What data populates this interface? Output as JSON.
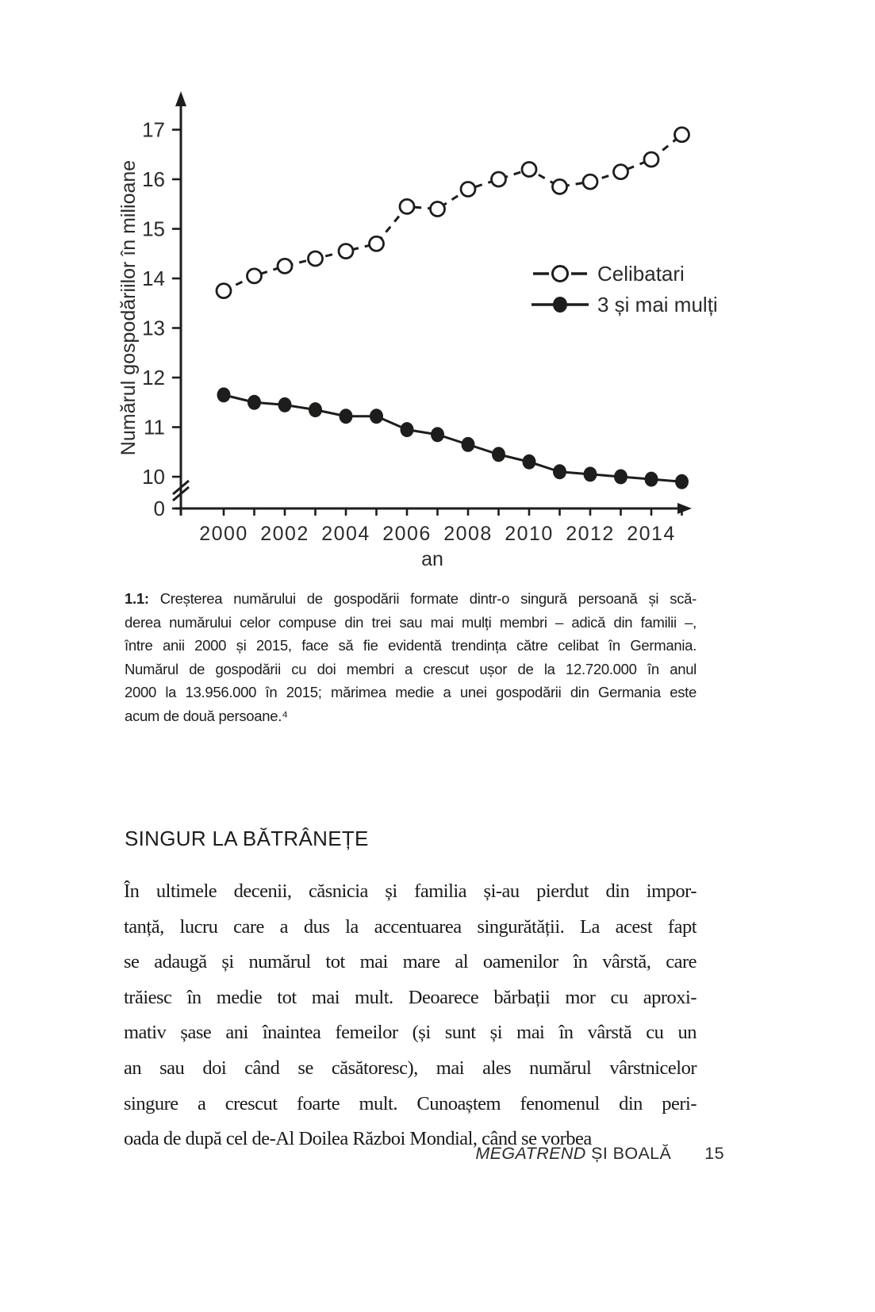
{
  "chart_data": {
    "type": "line",
    "x": [
      2000,
      2001,
      2002,
      2003,
      2004,
      2005,
      2006,
      2007,
      2008,
      2009,
      2010,
      2011,
      2012,
      2013,
      2014,
      2015
    ],
    "series": [
      {
        "name": "Celibatari",
        "marker": "open-circle",
        "line_style": "dashed",
        "values": [
          13.75,
          14.05,
          14.25,
          14.4,
          14.55,
          14.7,
          15.45,
          15.4,
          15.8,
          16.0,
          16.2,
          15.85,
          15.95,
          16.15,
          16.4,
          16.9
        ]
      },
      {
        "name": "3 și mai mulți",
        "marker": "filled-circle",
        "line_style": "solid",
        "values": [
          11.65,
          11.5,
          11.45,
          11.35,
          11.22,
          11.22,
          10.95,
          10.85,
          10.65,
          10.45,
          10.3,
          10.1,
          10.05,
          10.0,
          9.95,
          9.9
        ]
      }
    ],
    "xlabel": "an",
    "ylabel": "Numărul gospodăriilor în milioane",
    "y_ticks": [
      0,
      10,
      11,
      12,
      13,
      14,
      15,
      16,
      17
    ],
    "x_tick_labels": [
      "2000",
      "2002",
      "2004",
      "2006",
      "2008",
      "2010",
      "2012",
      "2014"
    ],
    "y_axis_break": true,
    "ylim": [
      0,
      17.5
    ],
    "grid": false,
    "legend_position": "middle-right",
    "line_color": "#1d1d1b"
  },
  "caption": {
    "label": "1.1:",
    "lines": [
      "Creșterea numărului de gospodării formate dintr-o singură persoană și scă-",
      "derea numărului celor compuse din trei sau mai mulți membri – adică din familii –,",
      "între anii 2000 și 2015, face să fie evidentă trendința către celibat în Germania.",
      "Numărul de gospodării cu doi membri a crescut ușor de la 12.720.000 în anul",
      "2000 la 13.956.000 în 2015; mărimea medie a unei gospodării din Germania este",
      "acum de două persoane.⁴"
    ]
  },
  "section": {
    "heading": "SINGUR LA BĂTRÂNEȚE",
    "paragraph_lines": [
      "În ultimele decenii, căsnicia și familia și-au pierdut din impor-",
      "tanță, lucru care a dus la accentuarea singurătății. La acest fapt",
      "se adaugă și numărul tot mai mare al oamenilor în vârstă, care",
      "trăiesc în medie tot mai mult. Deoarece bărbații mor cu aproxi-",
      "mativ șase ani înaintea femeilor (și sunt și mai în vârstă cu un",
      "an sau doi când se căsătoresc), mai ales numărul vârstnicelor",
      "singure a crescut foarte mult. Cunoaștem fenomenul din peri-",
      "oada de după cel de-Al Doilea Război Mondial, când se vorbea"
    ]
  },
  "footer": {
    "running_title_italic": "MEGATREND",
    "running_title_rest": " ȘI BOALĂ",
    "page_number": "15"
  }
}
